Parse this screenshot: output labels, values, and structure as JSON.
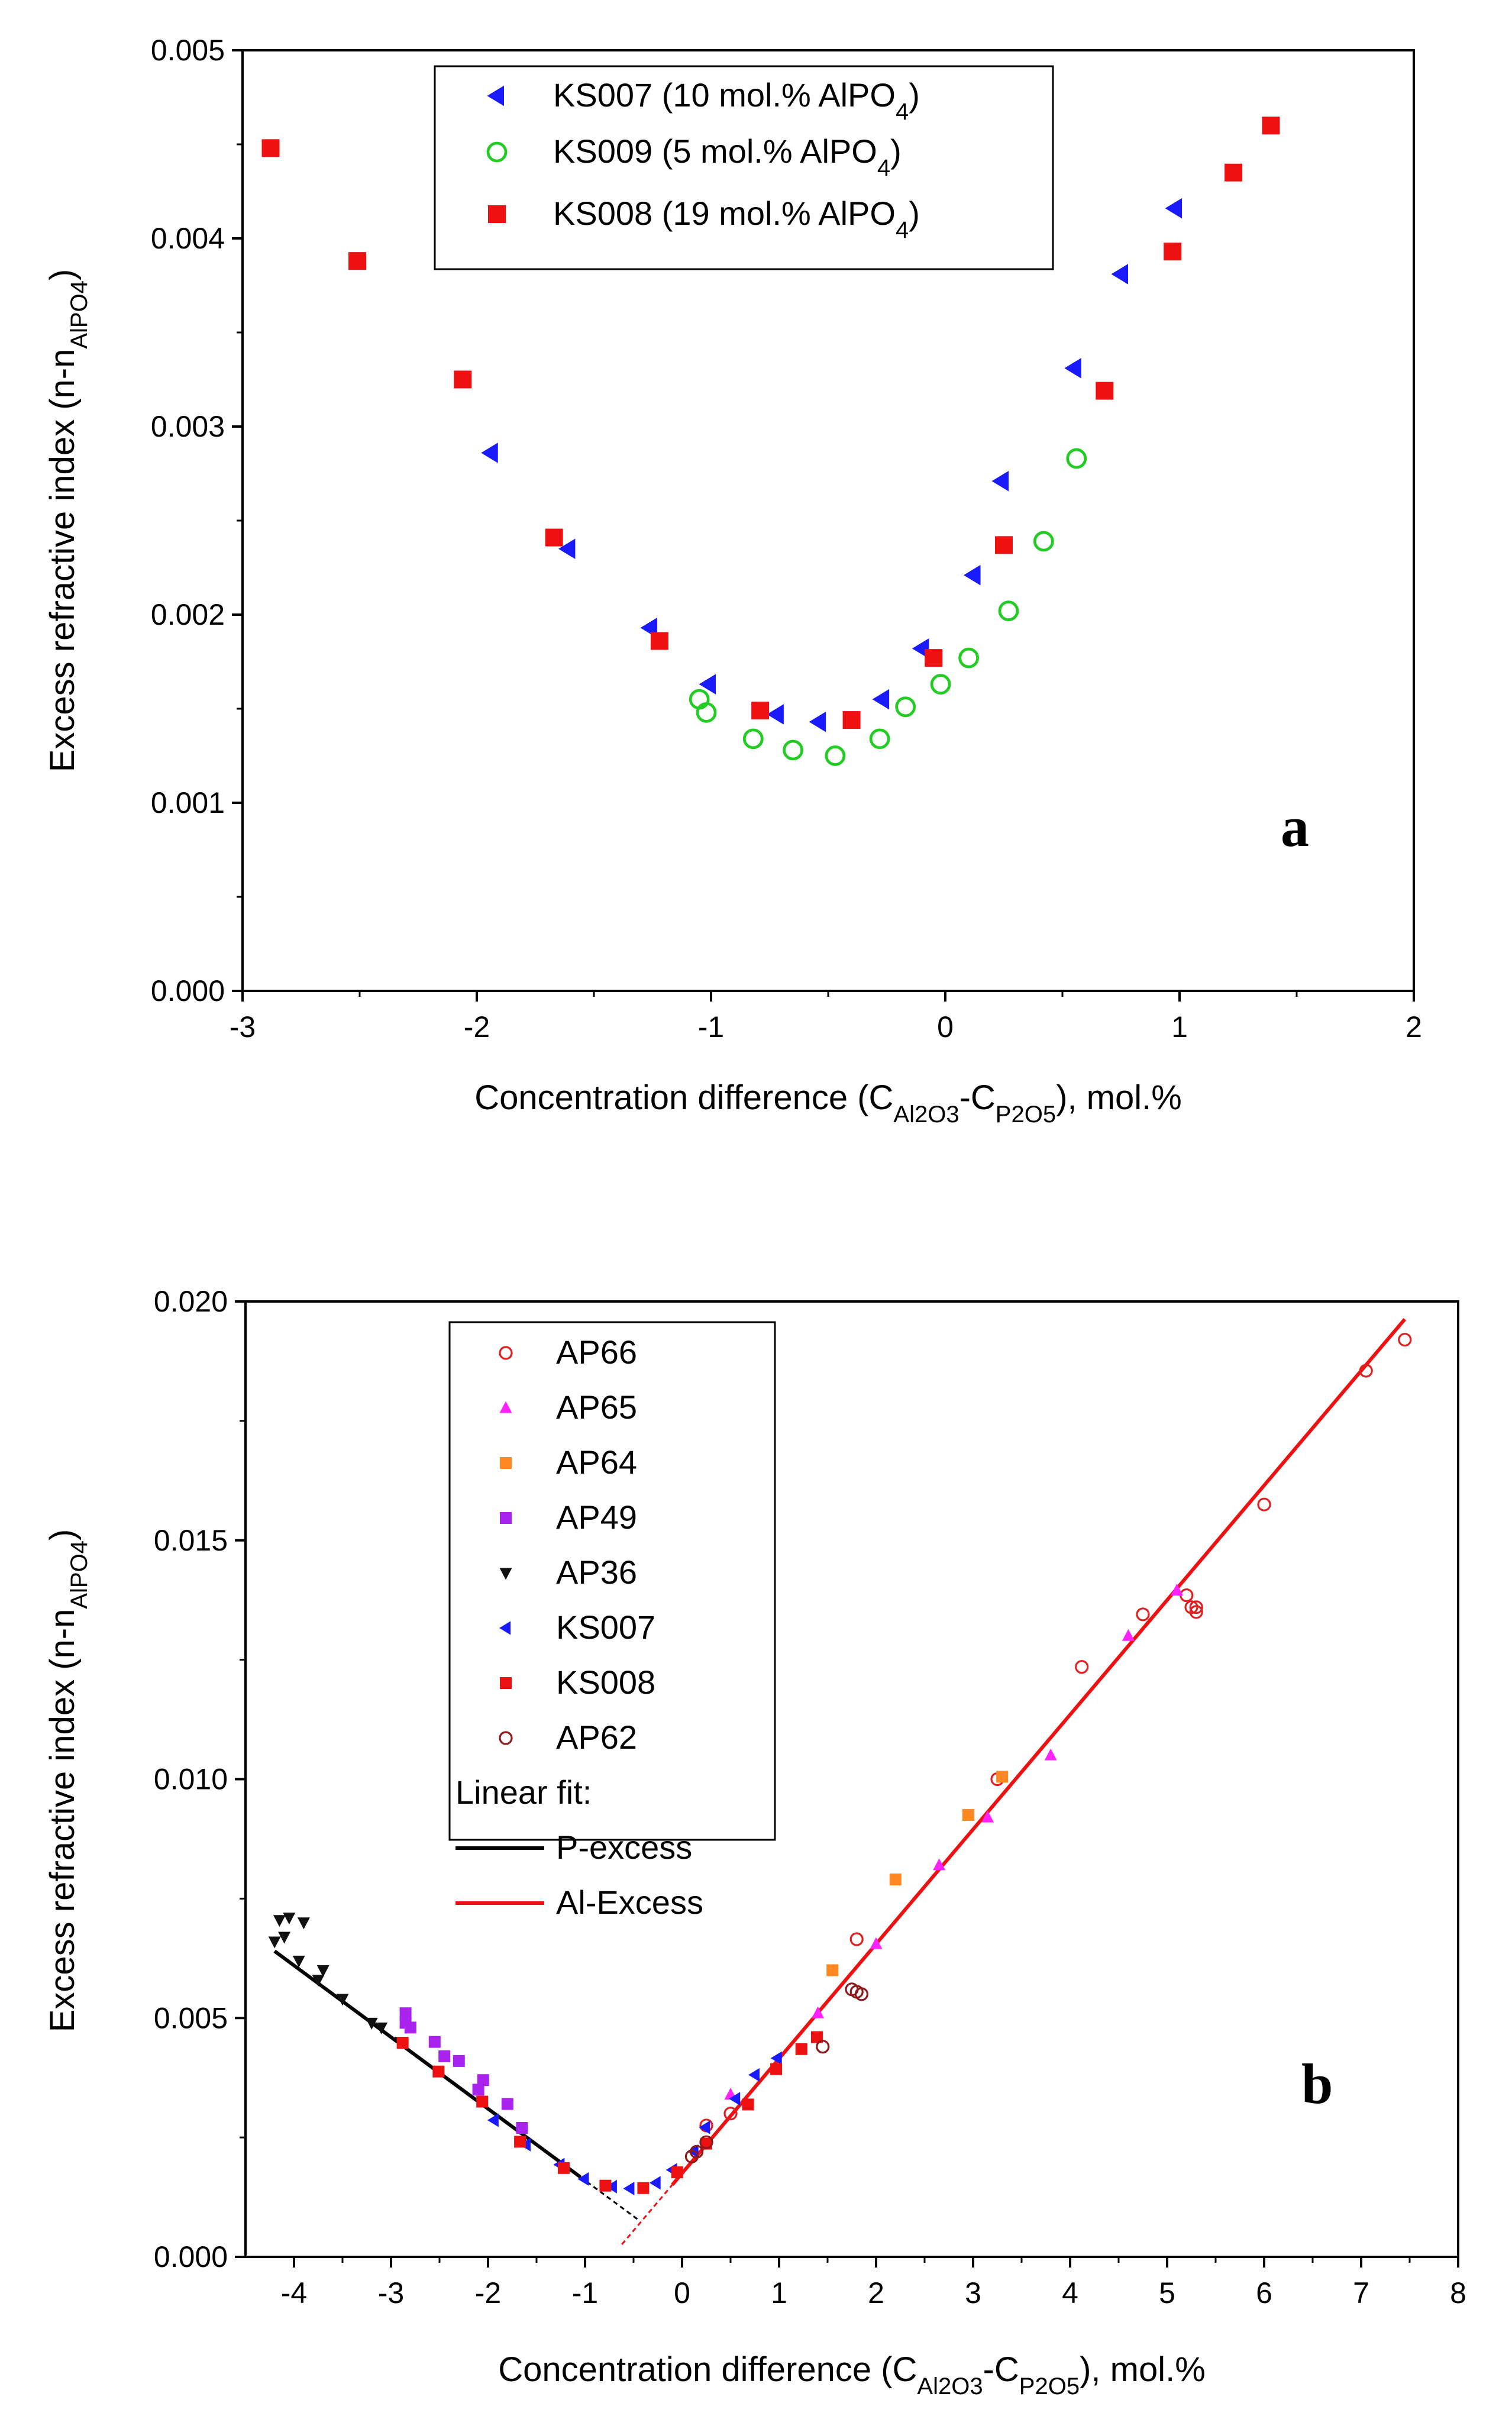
{
  "chart_data": [
    {
      "panel": "a",
      "type": "scatter",
      "xlabel": {
        "main": "Concentration difference (C",
        "sub1": "Al2O3",
        "mid": "-C",
        "sub2": "P2O5",
        "tail": "), mol.%"
      },
      "ylabel": {
        "main": "Excess refractive index (n-n",
        "sub": "AlPO4",
        "tail": ")"
      },
      "xlim": [
        -3,
        2
      ],
      "ylim": [
        0,
        0.005
      ],
      "xticks": [
        "-3",
        "-2",
        "-1",
        "0",
        "1",
        "2"
      ],
      "yticks": [
        "0.000",
        "0.001",
        "0.002",
        "0.003",
        "0.004",
        "0.005"
      ],
      "legend_position": "top-center",
      "series": [
        {
          "name": "KS007",
          "label": {
            "text": "KS007 (10 mol.% AlPO",
            "sub": "4",
            "tail": ")"
          },
          "marker": "triangle-left",
          "color": "#1a1aff",
          "filled": true,
          "points": [
            [
              -1.94,
              0.00286
            ],
            [
              -1.61,
              0.00235
            ],
            [
              -1.26,
              0.00193
            ],
            [
              -1.01,
              0.00163
            ],
            [
              -0.72,
              0.00147
            ],
            [
              -0.54,
              0.00143
            ],
            [
              -0.27,
              0.00155
            ],
            [
              -0.1,
              0.00182
            ],
            [
              0.12,
              0.00221
            ],
            [
              0.24,
              0.00271
            ],
            [
              0.55,
              0.00331
            ],
            [
              0.75,
              0.00381
            ],
            [
              0.98,
              0.00416
            ]
          ]
        },
        {
          "name": "KS009",
          "label": {
            "text": "KS009 (5 mol.% AlPO",
            "sub": "4",
            "tail": ")"
          },
          "marker": "circle-open",
          "color": "#22cc22",
          "filled": false,
          "points": [
            [
              -1.05,
              0.00155
            ],
            [
              -1.02,
              0.00148
            ],
            [
              -0.82,
              0.00134
            ],
            [
              -0.65,
              0.00128
            ],
            [
              -0.47,
              0.00125
            ],
            [
              -0.28,
              0.00134
            ],
            [
              -0.17,
              0.00151
            ],
            [
              -0.02,
              0.00163
            ],
            [
              0.1,
              0.00177
            ],
            [
              0.27,
              0.00202
            ],
            [
              0.42,
              0.00239
            ],
            [
              0.56,
              0.00283
            ]
          ]
        },
        {
          "name": "KS008",
          "label": {
            "text": "KS008 (19 mol.% AlPO",
            "sub": "4",
            "tail": ")"
          },
          "marker": "square",
          "color": "#ee1111",
          "filled": true,
          "points": [
            [
              -2.88,
              0.00448
            ],
            [
              -2.51,
              0.00388
            ],
            [
              -2.06,
              0.00325
            ],
            [
              -1.67,
              0.00241
            ],
            [
              -1.22,
              0.00186
            ],
            [
              -0.79,
              0.00149
            ],
            [
              -0.4,
              0.00144
            ],
            [
              -0.05,
              0.00177
            ],
            [
              0.25,
              0.00237
            ],
            [
              0.68,
              0.00319
            ],
            [
              0.97,
              0.00393
            ],
            [
              1.23,
              0.00435
            ],
            [
              1.39,
              0.0046
            ]
          ]
        }
      ]
    },
    {
      "panel": "b",
      "type": "scatter",
      "xlabel": {
        "main": "Concentration difference (C",
        "sub1": "Al2O3",
        "mid": "-C",
        "sub2": "P2O5",
        "tail": "), mol.%"
      },
      "ylabel": {
        "main": "Excess refractive index (n-n",
        "sub": "AlPO4",
        "tail": ")"
      },
      "xlim": [
        -4.5,
        8
      ],
      "ylim": [
        0,
        0.02
      ],
      "xticks": [
        "-4",
        "-3",
        "-2",
        "-1",
        "0",
        "1",
        "2",
        "3",
        "4",
        "5",
        "6",
        "7",
        "8"
      ],
      "yticks": [
        "0.000",
        "0.005",
        "0.010",
        "0.015",
        "0.020"
      ],
      "legend_position": "top-left",
      "legend_fit_title": "Linear fit:",
      "series": [
        {
          "name": "AP66",
          "marker": "circle-open",
          "color": "#e02020",
          "points": [
            [
              1.8,
              0.00665
            ],
            [
              3.25,
              0.01
            ],
            [
              4.12,
              0.01235
            ],
            [
              4.75,
              0.01345
            ],
            [
              5.2,
              0.01385
            ],
            [
              5.25,
              0.0136
            ],
            [
              5.3,
              0.0135
            ],
            [
              5.3,
              0.0136
            ],
            [
              6.0,
              0.01575
            ],
            [
              7.05,
              0.01855
            ],
            [
              7.45,
              0.0192
            ],
            [
              0.25,
              0.00275
            ],
            [
              0.5,
              0.003
            ]
          ]
        },
        {
          "name": "AP65",
          "marker": "triangle-up",
          "color": "#ff22ff",
          "points": [
            [
              0.5,
              0.0034
            ],
            [
              1.4,
              0.0051
            ],
            [
              2.0,
              0.00655
            ],
            [
              2.65,
              0.0082
            ],
            [
              3.15,
              0.0092
            ],
            [
              3.8,
              0.0105
            ],
            [
              4.6,
              0.013
            ],
            [
              5.1,
              0.01395
            ]
          ]
        },
        {
          "name": "AP64",
          "marker": "square",
          "color": "#ff8822",
          "points": [
            [
              1.55,
              0.006
            ],
            [
              2.2,
              0.0079
            ],
            [
              2.95,
              0.00925
            ],
            [
              3.3,
              0.01005
            ]
          ]
        },
        {
          "name": "AP49",
          "marker": "square",
          "color": "#aa22ee",
          "points": [
            [
              -2.85,
              0.0051
            ],
            [
              -2.8,
              0.0048
            ],
            [
              -2.55,
              0.0045
            ],
            [
              -2.3,
              0.0041
            ],
            [
              -2.05,
              0.0037
            ],
            [
              -2.1,
              0.0035
            ],
            [
              -1.8,
              0.0032
            ],
            [
              -1.65,
              0.0027
            ],
            [
              -2.85,
              0.0049
            ],
            [
              -2.45,
              0.0042
            ]
          ]
        },
        {
          "name": "AP36",
          "marker": "triangle-down",
          "color": "#111111",
          "points": [
            [
              -4.15,
              0.00705
            ],
            [
              -4.05,
              0.0071
            ],
            [
              -3.9,
              0.007
            ],
            [
              -4.2,
              0.0066
            ],
            [
              -3.95,
              0.0062
            ],
            [
              -3.7,
              0.006
            ],
            [
              -3.75,
              0.0058
            ],
            [
              -3.5,
              0.0054
            ],
            [
              -3.2,
              0.0049
            ],
            [
              -3.1,
              0.0048
            ],
            [
              -2.9,
              0.0045
            ],
            [
              -4.1,
              0.0067
            ]
          ]
        },
        {
          "name": "KS007",
          "marker": "triangle-left",
          "color": "#1a1aff",
          "points": [
            [
              -1.94,
              0.00286
            ],
            [
              -1.61,
              0.00235
            ],
            [
              -1.26,
              0.00193
            ],
            [
              -1.01,
              0.00163
            ],
            [
              -0.72,
              0.00147
            ],
            [
              -0.54,
              0.00143
            ],
            [
              -0.27,
              0.00155
            ],
            [
              -0.1,
              0.00182
            ],
            [
              0.12,
              0.00221
            ],
            [
              0.24,
              0.00271
            ],
            [
              0.55,
              0.00331
            ],
            [
              0.75,
              0.00381
            ],
            [
              0.98,
              0.00416
            ]
          ]
        },
        {
          "name": "KS008",
          "marker": "square",
          "color": "#ee1111",
          "points": [
            [
              -2.88,
              0.00448
            ],
            [
              -2.51,
              0.00388
            ],
            [
              -2.06,
              0.00325
            ],
            [
              -1.67,
              0.00241
            ],
            [
              -1.22,
              0.00186
            ],
            [
              -0.79,
              0.00149
            ],
            [
              -0.4,
              0.00144
            ],
            [
              -0.05,
              0.00177
            ],
            [
              0.25,
              0.00237
            ],
            [
              0.68,
              0.00319
            ],
            [
              0.97,
              0.00393
            ],
            [
              1.23,
              0.00435
            ],
            [
              1.39,
              0.0046
            ]
          ]
        },
        {
          "name": "AP62",
          "marker": "circle-open",
          "color": "#8b1a1a",
          "points": [
            [
              0.1,
              0.0021
            ],
            [
              0.15,
              0.0022
            ],
            [
              0.25,
              0.0024
            ],
            [
              1.45,
              0.0044
            ],
            [
              1.75,
              0.0056
            ],
            [
              1.85,
              0.0055
            ],
            [
              1.8,
              0.00555
            ]
          ]
        }
      ],
      "fits": [
        {
          "name": "P-excess",
          "color": "#000000",
          "solid_from": -4.2,
          "solid_to": -1.05,
          "dash_to": -0.45,
          "slope": -0.0015,
          "intercept": 0.0001
        },
        {
          "name": "Al-Excess",
          "color": "#ee1111",
          "solid_from": -0.1,
          "solid_to": 7.45,
          "dash_from": -0.62,
          "slope": 0.0024,
          "intercept": 0.00175
        }
      ]
    }
  ],
  "annotations": {
    "panel_a_letter": "a",
    "panel_b_letter": "b"
  }
}
